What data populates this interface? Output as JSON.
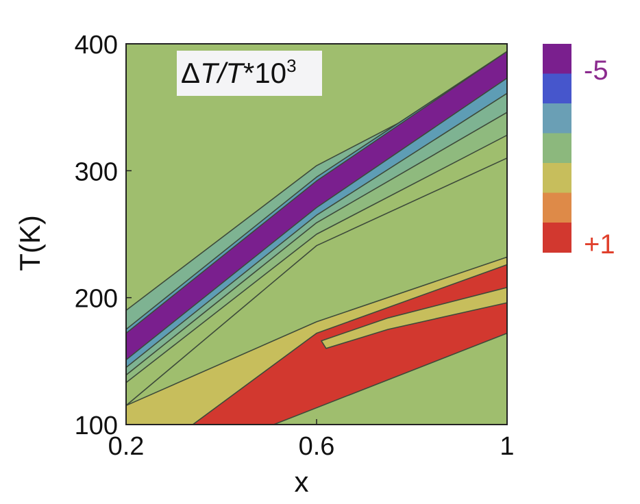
{
  "chart_data": {
    "type": "heatmap",
    "subtype": "filled-contour",
    "title": "ΔT/T*10³",
    "title_parts": {
      "delta": "Δ",
      "T1": "T",
      "slash": "/",
      "T2": "T",
      "rest": "*10",
      "sup": "3"
    },
    "xlabel": "x",
    "ylabel": "T(K)",
    "xlim": [
      0.2,
      1.0
    ],
    "ylim": [
      100,
      400
    ],
    "x_ticks": [
      0.2,
      0.6,
      1.0
    ],
    "x_tick_labels": [
      "0.2",
      "0.6",
      "1"
    ],
    "y_ticks": [
      100,
      200,
      300,
      400
    ],
    "y_tick_labels": [
      "100",
      "200",
      "300",
      "400"
    ],
    "grid": false,
    "colorbar": {
      "levels": [
        -5,
        -4,
        -3,
        -2,
        -1,
        0,
        1
      ],
      "colors": [
        "#7a1f8e",
        "#4656cc",
        "#6a9fb5",
        "#8cb87d",
        "#c7be5c",
        "#de8a48",
        "#d2382f"
      ],
      "top_label": "-5",
      "bottom_label": "+1",
      "top_label_color": "#8b2a8e",
      "bottom_label_color": "#e0402c",
      "placement": "right"
    },
    "background_level": -2,
    "contour_bands": [
      {
        "level": -1,
        "color": "#9fbe6e",
        "polygon": [
          [
            0.2,
            0.05
          ],
          [
            0.6,
            0.47
          ],
          [
            1.0,
            0.7
          ],
          [
            1.0,
            0.85
          ],
          [
            0.6,
            0.62
          ],
          [
            0.2,
            0.22
          ]
        ]
      },
      {
        "level": -2,
        "color": "#8fba7e",
        "polygon": [
          [
            0.2,
            0.11
          ],
          [
            0.6,
            0.5
          ],
          [
            1.0,
            0.76
          ],
          [
            1.0,
            0.86
          ],
          [
            0.6,
            0.6
          ],
          [
            0.2,
            0.2
          ]
        ]
      },
      {
        "level": -3,
        "color": "#7eb392",
        "polygon": [
          [
            0.2,
            0.13
          ],
          [
            0.6,
            0.53
          ],
          [
            1.0,
            0.82
          ],
          [
            1.0,
            0.94
          ],
          [
            0.6,
            0.68
          ],
          [
            0.2,
            0.3
          ]
        ]
      },
      {
        "level": -4,
        "color": "#5e9db5",
        "polygon": [
          [
            0.2,
            0.15
          ],
          [
            0.6,
            0.55
          ],
          [
            1.0,
            0.87
          ],
          [
            1.0,
            0.98
          ],
          [
            0.6,
            0.65
          ],
          [
            0.2,
            0.25
          ]
        ]
      },
      {
        "level": -5,
        "color": "#7a1f8e",
        "polygon": [
          [
            0.2,
            0.17
          ],
          [
            0.6,
            0.57
          ],
          [
            1.0,
            0.91
          ],
          [
            1.0,
            0.98
          ],
          [
            0.6,
            0.64
          ],
          [
            0.2,
            0.24
          ]
        ]
      },
      {
        "level": 0,
        "color": "#c7be5c",
        "polygon": [
          [
            0.2,
            0.0
          ],
          [
            0.45,
            0.0
          ],
          [
            1.0,
            0.37
          ],
          [
            1.0,
            0.44
          ],
          [
            0.6,
            0.27
          ],
          [
            0.2,
            0.05
          ]
        ]
      },
      {
        "level": 1,
        "color": "#d2382f",
        "polygon": [
          [
            0.34,
            0.0
          ],
          [
            0.51,
            0.0
          ],
          [
            1.0,
            0.24
          ],
          [
            1.0,
            0.42
          ],
          [
            0.6,
            0.24
          ],
          [
            0.34,
            0.0
          ]
        ]
      },
      {
        "level": 0,
        "color": "#c7be5c",
        "polygon": [
          [
            0.62,
            0.2
          ],
          [
            0.75,
            0.25
          ],
          [
            1.0,
            0.32
          ],
          [
            1.0,
            0.36
          ],
          [
            0.75,
            0.28
          ],
          [
            0.61,
            0.22
          ]
        ]
      }
    ]
  }
}
